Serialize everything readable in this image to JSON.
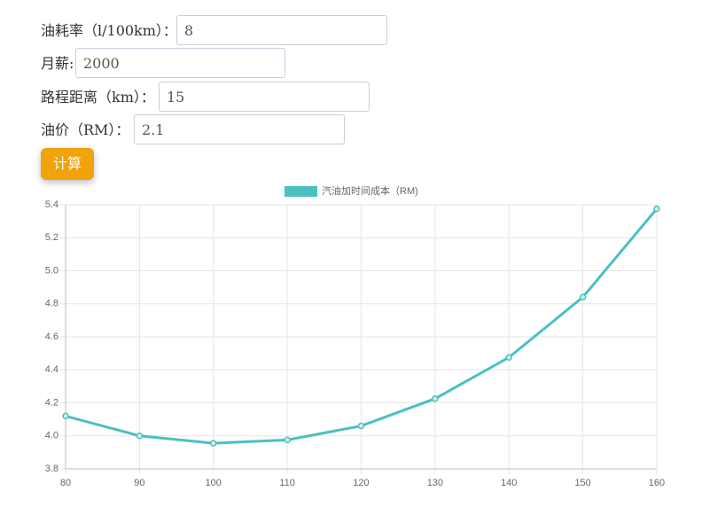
{
  "form": {
    "fields": [
      {
        "label": "油耗率（l/100km）：",
        "value": "8"
      },
      {
        "label": "月薪:",
        "value": "2000"
      },
      {
        "label": "路程距离（km）：",
        "value": "15"
      },
      {
        "label": "油价（RM）：",
        "value": "2.1"
      }
    ],
    "button": "计算"
  },
  "chart_data": {
    "type": "line",
    "x": [
      80,
      90,
      100,
      110,
      120,
      130,
      140,
      150,
      160
    ],
    "series": [
      {
        "name": "汽油加时间成本（RM)",
        "color": "#4bc0c0",
        "values": [
          4.12,
          4.0,
          3.955,
          3.975,
          4.06,
          4.225,
          4.475,
          4.84,
          5.375
        ]
      }
    ],
    "xlim": [
      80,
      160
    ],
    "xticks": [
      80,
      90,
      100,
      110,
      120,
      130,
      140,
      150,
      160
    ],
    "ylim": [
      3.8,
      5.4
    ],
    "yticks": [
      3.8,
      {
        "value": 4,
        "label": "4.0"
      },
      4.2,
      4.4,
      4.6,
      4.8,
      {
        "value": 5,
        "label": "5.0"
      },
      5.2,
      5.4
    ],
    "grid": true,
    "legend": "top"
  }
}
